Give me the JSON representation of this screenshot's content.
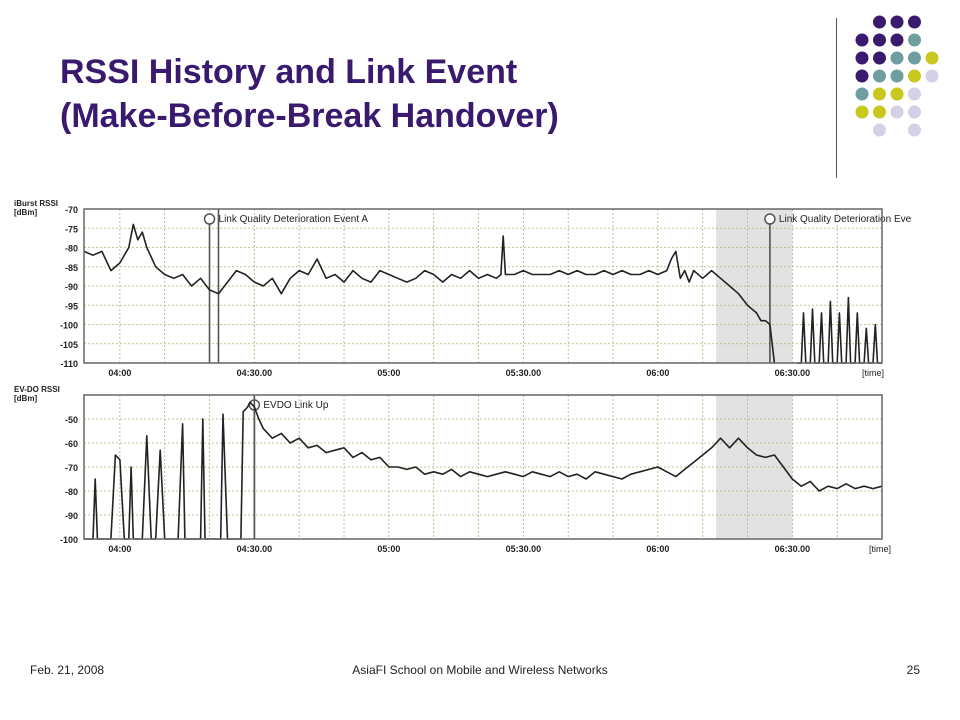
{
  "slide": {
    "title_line1": "RSSI History and Link Event",
    "title_line2": "(Make-Before-Break Handover)",
    "footer_left": "Feb. 21, 2008",
    "footer_center": "AsiaFI School on Mobile and Wireless Networks",
    "footer_right": "25"
  },
  "colors": {
    "title": "#3a1a6e",
    "dot_purple": "#3a1a6e",
    "dot_teal": "#6f9ea0",
    "dot_yellow": "#c8c81e",
    "dot_lavender": "#d4d0e6",
    "grid": "#a8b870",
    "trace": "#222222",
    "shade": "#d8d8d8"
  },
  "chart_data": [
    {
      "type": "line",
      "ylabel": "iBurst RSSI [dBm]",
      "ylabel_line1": "iBurst RSSI",
      "ylabel_line2": "[dBm]",
      "xunit": "[time]",
      "ylim": [
        -110,
        -70
      ],
      "yticks": [
        "-70",
        "-75",
        "-80",
        "-85",
        "-90",
        "-95",
        "-100",
        "-105",
        "-110"
      ],
      "ytick_values": [
        -70,
        -75,
        -80,
        -85,
        -90,
        -95,
        -100,
        -105,
        -110
      ],
      "xticks": [
        "04:00",
        "04:30.00",
        "05:00",
        "05:30.00",
        "06:00",
        "06:30.00"
      ],
      "xtick_values": [
        240,
        270,
        300,
        330,
        360,
        390
      ],
      "xlim": [
        232,
        410
      ],
      "grid": true,
      "shaded_region": [
        373,
        390
      ],
      "annotations": [
        {
          "label": "Link Quality Deterioration Event A",
          "x": 260
        },
        {
          "label": "Link Quality Deterioration Event B",
          "x": 385
        }
      ],
      "markers": [
        {
          "x": 262
        }
      ],
      "series": [
        {
          "x": [
            232,
            234,
            236,
            238,
            240,
            242,
            243,
            244,
            245,
            246,
            248,
            250,
            252,
            254,
            256,
            258,
            260,
            262,
            264,
            266,
            268,
            270,
            272,
            274,
            276,
            278,
            280,
            282,
            284,
            286,
            288,
            290,
            292,
            294,
            296,
            298,
            300,
            302,
            304,
            306,
            308,
            310,
            312,
            314,
            316,
            318,
            320,
            322,
            324,
            325,
            325.5,
            326,
            328,
            330,
            332,
            334,
            336,
            338,
            340,
            342,
            344,
            346,
            348,
            350,
            352,
            354,
            356,
            358,
            360,
            362,
            363,
            364,
            365,
            366,
            367,
            368,
            370,
            372,
            374,
            376,
            378,
            380,
            382,
            383,
            384,
            385,
            386
          ],
          "y": [
            -81,
            -82,
            -81,
            -86,
            -84,
            -80,
            -74,
            -78,
            -76,
            -80,
            -85,
            -87,
            -88,
            -87,
            -90,
            -88,
            -91,
            -92,
            -89,
            -86,
            -87,
            -89,
            -90,
            -88,
            -92,
            -88,
            -86,
            -87,
            -83,
            -88,
            -87,
            -89,
            -86,
            -88,
            -89,
            -86,
            -87,
            -88,
            -89,
            -88,
            -86,
            -87,
            -89,
            -87,
            -88,
            -86,
            -88,
            -87,
            -88,
            -87,
            -77,
            -87,
            -87,
            -86,
            -87,
            -87,
            -87,
            -86,
            -87,
            -86,
            -87,
            -87,
            -86,
            -87,
            -86,
            -87,
            -87,
            -86,
            -87,
            -86,
            -83,
            -81,
            -88,
            -86,
            -89,
            -86,
            -88,
            -86,
            -88,
            -90,
            -92,
            -95,
            -97,
            -99,
            -99,
            -100,
            -110
          ]
        },
        {
          "x": [
            391,
            392,
            392.5,
            393,
            394,
            394.5,
            395,
            396,
            396.5,
            397,
            398,
            398.5,
            399,
            400,
            400.5,
            401,
            402,
            402.5,
            403,
            404,
            404.5,
            405,
            406,
            406.5,
            407,
            408,
            408.5,
            409,
            410
          ],
          "y": [
            -110,
            -110,
            -97,
            -110,
            -110,
            -96,
            -110,
            -110,
            -97,
            -110,
            -110,
            -94,
            -110,
            -110,
            -97,
            -110,
            -110,
            -93,
            -110,
            -110,
            -97,
            -110,
            -110,
            -101,
            -110,
            -110,
            -100,
            -110,
            -110
          ]
        }
      ]
    },
    {
      "type": "line",
      "ylabel": "EV-DO RSSI [dBm]",
      "ylabel_line1": "EV-DO RSSI",
      "ylabel_line2": "[dBm]",
      "xunit": "[time]",
      "ylim": [
        -100,
        -40
      ],
      "yticks": [
        "-50",
        "-60",
        "-70",
        "-80",
        "-90",
        "-100"
      ],
      "ytick_values": [
        -50,
        -60,
        -70,
        -80,
        -90,
        -100
      ],
      "xticks": [
        "04:00",
        "04:30.00",
        "05:00",
        "05:30.00",
        "06:00",
        "06:30.00"
      ],
      "xtick_values": [
        240,
        270,
        300,
        330,
        360,
        390
      ],
      "xlim": [
        232,
        410
      ],
      "grid": true,
      "shaded_region": [
        373,
        390
      ],
      "annotations": [
        {
          "label": "EVDO Link Up",
          "x": 270
        }
      ],
      "markers": [
        {
          "x": 270
        }
      ],
      "series": [
        {
          "x": [
            232,
            234,
            234.5,
            235,
            237,
            238,
            239,
            240,
            241,
            242,
            242.5,
            243,
            244,
            245,
            246,
            247,
            247.5,
            248,
            249,
            250,
            250.5,
            251,
            252,
            253,
            254,
            254.5,
            255,
            256,
            257,
            258,
            258.5,
            259,
            260,
            261,
            262,
            262.5,
            263,
            264,
            265,
            266,
            267,
            267.5,
            268,
            268.5,
            269,
            270,
            271,
            272,
            274,
            276,
            278,
            280,
            282,
            284,
            286,
            288,
            290,
            292,
            294,
            296,
            298,
            300,
            302,
            304,
            306,
            308,
            310,
            312,
            314,
            316,
            318,
            320,
            322,
            324,
            326,
            328,
            330,
            332,
            334,
            336,
            338,
            340,
            342,
            344,
            346,
            348,
            350,
            352,
            354,
            356,
            358,
            360,
            362,
            364,
            366,
            368,
            370,
            372,
            374,
            376,
            378,
            380,
            382,
            384,
            386,
            388,
            390,
            392,
            394,
            396,
            398,
            400,
            402,
            404,
            406,
            408,
            410
          ],
          "y": [
            -100,
            -100,
            -75,
            -100,
            -100,
            -100,
            -65,
            -67,
            -100,
            -100,
            -70,
            -100,
            -100,
            -100,
            -57,
            -100,
            -100,
            -100,
            -63,
            -100,
            -100,
            -100,
            -100,
            -100,
            -52,
            -100,
            -100,
            -100,
            -100,
            -100,
            -50,
            -100,
            -100,
            -100,
            -100,
            -100,
            -48,
            -100,
            -100,
            -100,
            -100,
            -47,
            -46,
            -45,
            -43,
            -45,
            -50,
            -54,
            -58,
            -56,
            -60,
            -58,
            -62,
            -61,
            -64,
            -63,
            -62,
            -66,
            -64,
            -67,
            -66,
            -70,
            -70,
            -71,
            -70,
            -73,
            -72,
            -73,
            -71,
            -74,
            -72,
            -73,
            -74,
            -73,
            -72,
            -73,
            -74,
            -72,
            -73,
            -74,
            -72,
            -74,
            -73,
            -75,
            -72,
            -73,
            -74,
            -75,
            -73,
            -72,
            -71,
            -70,
            -72,
            -74,
            -71,
            -68,
            -65,
            -62,
            -58,
            -62,
            -58,
            -62,
            -65,
            -66,
            -65,
            -70,
            -75,
            -78,
            -76,
            -80,
            -78,
            -79,
            -77,
            -79,
            -78,
            -79,
            -78
          ]
        }
      ]
    }
  ]
}
